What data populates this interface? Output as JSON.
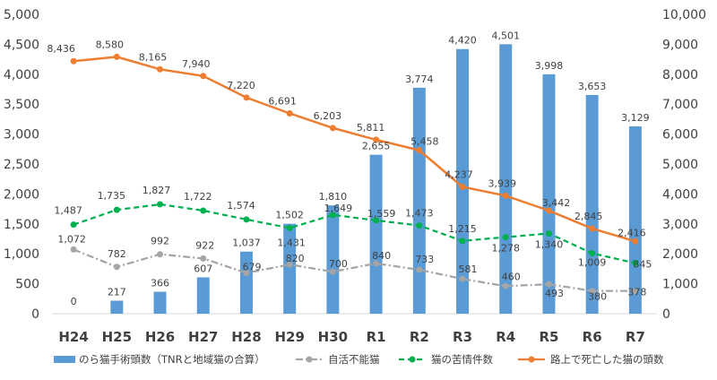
{
  "chart_data": {
    "type": "bar",
    "title": "",
    "xlabel": "",
    "ylabel": "",
    "categories": [
      "H24",
      "H25",
      "H26",
      "H27",
      "H28",
      "H29",
      "H30",
      "R1",
      "R2",
      "R3",
      "R4",
      "R5",
      "R6",
      "R7"
    ],
    "y_left": {
      "range": [
        0,
        5000
      ],
      "ticks": [
        "0",
        "500",
        "1,000",
        "1,500",
        "2,000",
        "2,500",
        "3,000",
        "3,500",
        "4,000",
        "4,500",
        "5,000"
      ]
    },
    "y_right": {
      "range": [
        0,
        10000
      ],
      "ticks": [
        "0",
        "1,000",
        "2,000",
        "3,000",
        "4,000",
        "5,000",
        "6,000",
        "7,000",
        "8,000",
        "9,000",
        "10,000"
      ]
    },
    "grid": false,
    "legend_position": "bottom",
    "series": [
      {
        "name": "のら猫手術頭数（TNRと地域猫の合算）",
        "kind": "bar",
        "axis": "left",
        "color": "#5b9bd5",
        "values": [
          0,
          217,
          366,
          607,
          1037,
          1502,
          1810,
          2655,
          3774,
          4420,
          4501,
          3998,
          3653,
          3129
        ],
        "labels": [
          "0",
          "217",
          "366",
          "607",
          "1,037",
          "1,502",
          "1,810",
          "2,655",
          "3,774",
          "4,420",
          "4,501",
          "3,998",
          "3,653",
          "3,129"
        ]
      },
      {
        "name": "自活不能猫",
        "kind": "line",
        "style": "dash-dot",
        "axis": "left",
        "color": "#a5a5a5",
        "values": [
          1072,
          782,
          992,
          922,
          679,
          820,
          700,
          840,
          733,
          581,
          460,
          493,
          380,
          378
        ],
        "labels": [
          "1,072",
          "782",
          "992",
          "922",
          "679",
          "820",
          "700",
          "840",
          "733",
          "581",
          "460",
          "493",
          "380",
          "378"
        ]
      },
      {
        "name": "猫の苦情件数",
        "kind": "line",
        "style": "dashed",
        "axis": "left",
        "color": "#00b050",
        "values": [
          1487,
          1735,
          1827,
          1722,
          1574,
          1431,
          1649,
          1559,
          1473,
          1215,
          1278,
          1340,
          1009,
          845
        ],
        "labels": [
          "1,487",
          "1,735",
          "1,827",
          "1,722",
          "1,574",
          "1,431",
          "1,649",
          "1,559",
          "1,473",
          "1,215",
          "1,278",
          "1,340",
          "1,009",
          "845"
        ]
      },
      {
        "name": "路上で死亡した猫の頭数",
        "kind": "line",
        "style": "solid",
        "axis": "right",
        "color": "#ed7d31",
        "values": [
          8436,
          8580,
          8165,
          7940,
          7220,
          6691,
          6203,
          5811,
          5458,
          4237,
          3939,
          3442,
          2845,
          2416
        ],
        "labels": [
          "8,436",
          "8,580",
          "8,165",
          "7,940",
          "7,220",
          "6,691",
          "6,203",
          "5,811",
          "5,458",
          "4,237",
          "3,939",
          "3,442",
          "2,845",
          "2,416"
        ]
      }
    ]
  }
}
